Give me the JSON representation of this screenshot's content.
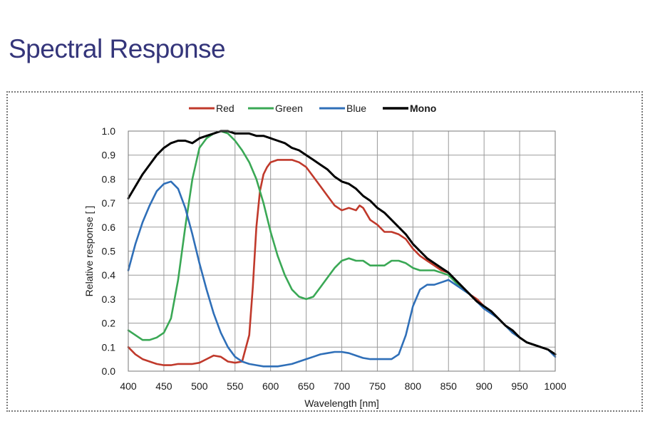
{
  "page": {
    "title": "Spectral Response"
  },
  "chart_data": {
    "type": "line",
    "title": "",
    "xlabel": "Wavelength [nm]",
    "ylabel": "Relative response [ ]",
    "xlim": [
      400,
      1000
    ],
    "ylim": [
      0,
      1.0
    ],
    "xticks": [
      400,
      450,
      500,
      550,
      600,
      650,
      700,
      750,
      800,
      850,
      900,
      950,
      1000
    ],
    "yticks": [
      0.0,
      0.1,
      0.2,
      0.3,
      0.4,
      0.5,
      0.6,
      0.7,
      0.8,
      0.9,
      1.0
    ],
    "ytick_labels": [
      "0.0",
      "0.1",
      "0.2",
      "0.3",
      "0.4",
      "0.5",
      "0.6",
      "0.7",
      "0.8",
      "0.9",
      "1.0"
    ],
    "grid": true,
    "legend_position": "top",
    "series": [
      {
        "name": "Red",
        "color": "#c0392b",
        "x": [
          400,
          410,
          420,
          430,
          440,
          450,
          460,
          470,
          480,
          490,
          500,
          510,
          520,
          530,
          540,
          550,
          560,
          570,
          575,
          580,
          585,
          590,
          595,
          600,
          610,
          620,
          630,
          640,
          650,
          660,
          670,
          680,
          690,
          700,
          710,
          720,
          725,
          730,
          740,
          750,
          760,
          770,
          780,
          790,
          800,
          810,
          820,
          830,
          840,
          850,
          860,
          870,
          880,
          890,
          900,
          910,
          920,
          930,
          940,
          950,
          960,
          970,
          980,
          990,
          1000
        ],
        "y": [
          0.1,
          0.07,
          0.05,
          0.04,
          0.03,
          0.025,
          0.025,
          0.03,
          0.03,
          0.03,
          0.035,
          0.05,
          0.065,
          0.06,
          0.04,
          0.035,
          0.04,
          0.15,
          0.35,
          0.6,
          0.75,
          0.82,
          0.85,
          0.87,
          0.88,
          0.88,
          0.88,
          0.87,
          0.85,
          0.81,
          0.77,
          0.73,
          0.69,
          0.67,
          0.68,
          0.67,
          0.69,
          0.68,
          0.63,
          0.61,
          0.58,
          0.58,
          0.57,
          0.55,
          0.51,
          0.48,
          0.46,
          0.44,
          0.42,
          0.41,
          0.38,
          0.35,
          0.32,
          0.3,
          0.27,
          0.25,
          0.22,
          0.19,
          0.16,
          0.14,
          0.12,
          0.11,
          0.1,
          0.09,
          0.07
        ]
      },
      {
        "name": "Green",
        "color": "#3aa855",
        "x": [
          400,
          410,
          420,
          430,
          440,
          450,
          460,
          470,
          480,
          490,
          500,
          510,
          520,
          530,
          540,
          550,
          560,
          570,
          580,
          590,
          600,
          610,
          620,
          630,
          640,
          650,
          660,
          670,
          680,
          690,
          700,
          710,
          720,
          730,
          740,
          750,
          760,
          770,
          780,
          790,
          800,
          810,
          820,
          830,
          840,
          850,
          860,
          870,
          880,
          890,
          900,
          910,
          920,
          930,
          940,
          950,
          960,
          970,
          980,
          990,
          1000
        ],
        "y": [
          0.17,
          0.15,
          0.13,
          0.13,
          0.14,
          0.16,
          0.22,
          0.38,
          0.6,
          0.8,
          0.93,
          0.97,
          0.99,
          1.0,
          0.99,
          0.96,
          0.92,
          0.87,
          0.8,
          0.7,
          0.58,
          0.48,
          0.4,
          0.34,
          0.31,
          0.3,
          0.31,
          0.35,
          0.39,
          0.43,
          0.46,
          0.47,
          0.46,
          0.46,
          0.44,
          0.44,
          0.44,
          0.46,
          0.46,
          0.45,
          0.43,
          0.42,
          0.42,
          0.42,
          0.41,
          0.4,
          0.37,
          0.34,
          0.32,
          0.29,
          0.27,
          0.25,
          0.22,
          0.19,
          0.16,
          0.14,
          0.12,
          0.11,
          0.1,
          0.09,
          0.07
        ]
      },
      {
        "name": "Blue",
        "color": "#2f6fb8",
        "x": [
          400,
          410,
          420,
          430,
          440,
          450,
          460,
          470,
          480,
          490,
          500,
          510,
          520,
          530,
          540,
          550,
          560,
          570,
          580,
          590,
          600,
          610,
          620,
          630,
          640,
          650,
          660,
          670,
          680,
          690,
          700,
          710,
          720,
          730,
          740,
          750,
          760,
          770,
          780,
          790,
          800,
          810,
          820,
          830,
          840,
          850,
          860,
          870,
          880,
          890,
          900,
          910,
          920,
          930,
          940,
          950,
          960,
          970,
          980,
          990,
          1000
        ],
        "y": [
          0.42,
          0.53,
          0.62,
          0.69,
          0.75,
          0.78,
          0.79,
          0.76,
          0.68,
          0.57,
          0.45,
          0.34,
          0.24,
          0.16,
          0.1,
          0.06,
          0.04,
          0.03,
          0.025,
          0.02,
          0.02,
          0.02,
          0.025,
          0.03,
          0.04,
          0.05,
          0.06,
          0.07,
          0.075,
          0.08,
          0.08,
          0.075,
          0.065,
          0.055,
          0.05,
          0.05,
          0.05,
          0.05,
          0.07,
          0.15,
          0.27,
          0.34,
          0.36,
          0.36,
          0.37,
          0.38,
          0.36,
          0.34,
          0.32,
          0.29,
          0.26,
          0.24,
          0.22,
          0.19,
          0.16,
          0.14,
          0.12,
          0.11,
          0.1,
          0.09,
          0.06
        ]
      },
      {
        "name": "Mono",
        "color": "#000000",
        "x": [
          400,
          410,
          420,
          430,
          440,
          450,
          460,
          470,
          480,
          490,
          500,
          510,
          520,
          530,
          540,
          550,
          560,
          570,
          580,
          590,
          600,
          610,
          620,
          630,
          640,
          650,
          660,
          670,
          680,
          690,
          700,
          710,
          720,
          730,
          740,
          750,
          760,
          770,
          780,
          790,
          800,
          810,
          820,
          830,
          840,
          850,
          860,
          870,
          880,
          890,
          900,
          910,
          920,
          930,
          940,
          950,
          960,
          970,
          980,
          990,
          1000
        ],
        "y": [
          0.72,
          0.77,
          0.82,
          0.86,
          0.9,
          0.93,
          0.95,
          0.96,
          0.96,
          0.95,
          0.97,
          0.98,
          0.99,
          1.0,
          1.0,
          0.99,
          0.99,
          0.99,
          0.98,
          0.98,
          0.97,
          0.96,
          0.95,
          0.93,
          0.92,
          0.9,
          0.88,
          0.86,
          0.84,
          0.81,
          0.79,
          0.78,
          0.76,
          0.73,
          0.71,
          0.68,
          0.66,
          0.63,
          0.6,
          0.57,
          0.53,
          0.5,
          0.47,
          0.45,
          0.43,
          0.41,
          0.38,
          0.35,
          0.32,
          0.29,
          0.27,
          0.25,
          0.22,
          0.19,
          0.17,
          0.14,
          0.12,
          0.11,
          0.1,
          0.09,
          0.07
        ]
      }
    ]
  }
}
